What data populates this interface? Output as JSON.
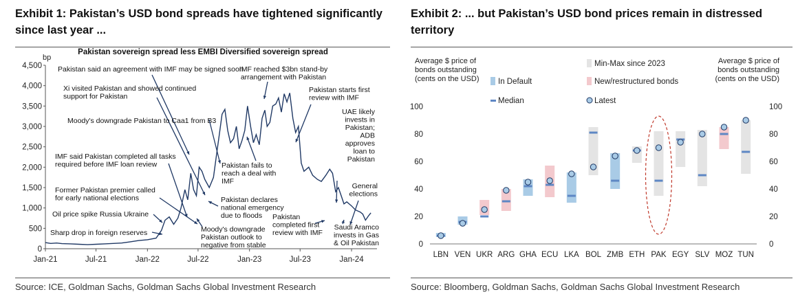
{
  "exhibit1": {
    "title": "Exhibit 1: Pakistan’s USD bond spreads have tightened significantly since last year ...",
    "source": "Source: ICE, Goldman Sachs, Goldman Sachs Global Investment Research",
    "chart_data": {
      "type": "line",
      "title": "Pakistan sovereign spread less EMBI Diversified sovereign spread",
      "ylabel": "bp",
      "ylim": [
        0,
        4500
      ],
      "yticks": [
        0,
        500,
        1000,
        1500,
        2000,
        2500,
        3000,
        3500,
        4000,
        4500
      ],
      "ytick_labels": [
        "0",
        "500",
        "1,000",
        "1,500",
        "2,000",
        "2,500",
        "3,000",
        "3,500",
        "4,000",
        "4,500"
      ],
      "xlim": [
        "2021-01",
        "2024-04"
      ],
      "xticks": [
        "2021-01",
        "2021-07",
        "2022-01",
        "2022-07",
        "2023-01",
        "2023-07",
        "2024-01"
      ],
      "xtick_labels": [
        "Jan-21",
        "Jul-21",
        "Jan-22",
        "Jul-22",
        "Jan-23",
        "Jul-23",
        "Jan-24"
      ],
      "series": [
        {
          "color": "#1f3864",
          "points": [
            [
              "2021-01-01",
              150
            ],
            [
              "2021-01-20",
              130
            ],
            [
              "2021-02-10",
              140
            ],
            [
              "2021-03-01",
              125
            ],
            [
              "2021-04-01",
              120
            ],
            [
              "2021-05-01",
              110
            ],
            [
              "2021-06-01",
              100
            ],
            [
              "2021-07-01",
              110
            ],
            [
              "2021-08-01",
              120
            ],
            [
              "2021-09-01",
              130
            ],
            [
              "2021-10-01",
              140
            ],
            [
              "2021-11-01",
              170
            ],
            [
              "2021-12-01",
              200
            ],
            [
              "2022-01-01",
              220
            ],
            [
              "2022-02-01",
              260
            ],
            [
              "2022-02-20",
              450
            ],
            [
              "2022-03-05",
              700
            ],
            [
              "2022-03-20",
              780
            ],
            [
              "2022-04-05",
              600
            ],
            [
              "2022-04-20",
              750
            ],
            [
              "2022-05-01",
              1000
            ],
            [
              "2022-05-15",
              1450
            ],
            [
              "2022-05-25",
              1200
            ],
            [
              "2022-06-05",
              1850
            ],
            [
              "2022-06-15",
              1450
            ],
            [
              "2022-06-25",
              1300
            ],
            [
              "2022-07-05",
              2000
            ],
            [
              "2022-07-15",
              1900
            ],
            [
              "2022-07-25",
              1700
            ],
            [
              "2022-08-10",
              1500
            ],
            [
              "2022-08-25",
              1750
            ],
            [
              "2022-09-05",
              2300
            ],
            [
              "2022-09-15",
              2800
            ],
            [
              "2022-09-25",
              3300
            ],
            [
              "2022-10-05",
              3420
            ],
            [
              "2022-10-15",
              2900
            ],
            [
              "2022-10-25",
              2600
            ],
            [
              "2022-11-05",
              2700
            ],
            [
              "2022-11-15",
              3000
            ],
            [
              "2022-11-25",
              2450
            ],
            [
              "2022-12-05",
              2650
            ],
            [
              "2022-12-15",
              2900
            ],
            [
              "2022-12-25",
              3500
            ],
            [
              "2023-01-05",
              3000
            ],
            [
              "2023-01-15",
              2600
            ],
            [
              "2023-01-25",
              2800
            ],
            [
              "2023-02-05",
              2550
            ],
            [
              "2023-02-15",
              3200
            ],
            [
              "2023-02-25",
              3400
            ],
            [
              "2023-03-05",
              3000
            ],
            [
              "2023-03-15",
              3100
            ],
            [
              "2023-03-25",
              3500
            ],
            [
              "2023-04-05",
              3550
            ],
            [
              "2023-04-15",
              3700
            ],
            [
              "2023-04-25",
              3350
            ],
            [
              "2023-05-05",
              3800
            ],
            [
              "2023-05-15",
              3600
            ],
            [
              "2023-05-25",
              3820
            ],
            [
              "2023-06-05",
              3200
            ],
            [
              "2023-06-15",
              2850
            ],
            [
              "2023-06-25",
              3000
            ],
            [
              "2023-07-05",
              2100
            ],
            [
              "2023-07-15",
              1900
            ],
            [
              "2023-08-01",
              2000
            ],
            [
              "2023-08-15",
              1800
            ],
            [
              "2023-09-01",
              1700
            ],
            [
              "2023-09-15",
              1650
            ],
            [
              "2023-10-01",
              1800
            ],
            [
              "2023-10-15",
              1950
            ],
            [
              "2023-10-25",
              1850
            ],
            [
              "2023-11-05",
              1400
            ],
            [
              "2023-11-15",
              1500
            ],
            [
              "2023-11-25",
              1300
            ],
            [
              "2023-12-05",
              1100
            ],
            [
              "2023-12-15",
              1150
            ],
            [
              "2024-01-01",
              1050
            ],
            [
              "2024-01-15",
              950
            ],
            [
              "2024-02-01",
              900
            ],
            [
              "2024-02-10",
              850
            ],
            [
              "2024-02-20",
              700
            ],
            [
              "2024-03-01",
              800
            ],
            [
              "2024-03-10",
              880
            ]
          ]
        }
      ],
      "annotations": [
        {
          "lines": [
            "Pakistan said an agreement with IMF may be signed soon"
          ]
        },
        {
          "lines": [
            "Xi visited Pakistan and showed continued",
            "support for Pakistan"
          ]
        },
        {
          "lines": [
            "Moody's downgrade Pakistan to Caa1 from B3"
          ]
        },
        {
          "lines": [
            "IMF said Pakistan completed all tasks",
            "required before IMF loan review"
          ]
        },
        {
          "lines": [
            "Former Pakistan premier called",
            "for early national elections"
          ]
        },
        {
          "lines": [
            "Oil price spike Russia Ukraine"
          ]
        },
        {
          "lines": [
            "Sharp drop in foreign reserves"
          ]
        },
        {
          "lines": [
            "Moody's downgrade",
            "Pakistan outlook to",
            "negative from stable"
          ]
        },
        {
          "lines": [
            "Pakistan declares",
            "national emergency",
            "due to floods"
          ]
        },
        {
          "lines": [
            "Pakistan fails to",
            "reach a deal with",
            "IMF"
          ]
        },
        {
          "lines": [
            "IMF reached $3bn stand-by",
            "arrangement with Pakistan"
          ]
        },
        {
          "lines": [
            "Pakistan starts first",
            "review with IMF"
          ]
        },
        {
          "lines": [
            "UAE likely",
            "invests in",
            "Pakistan;",
            "ADB",
            "approves",
            "loan to",
            "Pakistan"
          ]
        },
        {
          "lines": [
            "General",
            "elections"
          ]
        },
        {
          "lines": [
            "Pakistan",
            "completed first",
            "review with IMF"
          ]
        },
        {
          "lines": [
            "Saudi Aramco",
            "invests in Gas",
            "& Oil Pakistan"
          ]
        }
      ]
    }
  },
  "exhibit2": {
    "title": "Exhibit 2: ... but Pakistan’s USD bond prices remain in distressed territory",
    "source": "Source: Bloomberg, Goldman Sachs, Goldman Sachs Global Investment Research",
    "chart_data": {
      "type": "range",
      "ylabel_left": [
        "Average $ price of",
        "bonds outstanding",
        "(cents on the USD)"
      ],
      "ylabel_right": [
        "Average $ price of",
        "bonds outstanding",
        "(cents on the USD)"
      ],
      "ylim": [
        0,
        100
      ],
      "yticks": [
        0,
        20,
        40,
        60,
        80,
        100
      ],
      "legend": {
        "minmax": "Min-Max since 2023",
        "in_default": "In Default",
        "new_restructured": "New/restructured bonds",
        "median": "Median",
        "latest": "Latest"
      },
      "colors": {
        "minmax": "#e4e4e4",
        "in_default": "#a9cbe6",
        "new_restructured": "#f3c9cd",
        "median": "#5e87c4",
        "latest_fill": "#a9cbe6",
        "latest_stroke": "#1f3864",
        "highlight": "#c0392b"
      },
      "categories": [
        "LBN",
        "VEN",
        "UKR",
        "ARG",
        "GHA",
        "ECU",
        "LKA",
        "BOL",
        "ZMB",
        "ETH",
        "PAK",
        "EGY",
        "SLV",
        "MOZ",
        "TUN"
      ],
      "groups": [
        "default",
        "default",
        "restructured",
        "restructured",
        "default",
        "restructured",
        "default",
        "minmax",
        "default",
        "minmax",
        "minmax",
        "minmax",
        "minmax",
        "restructured",
        "minmax"
      ],
      "min": [
        5,
        14,
        21,
        24,
        35,
        34,
        30,
        50,
        40,
        59,
        35,
        56,
        42,
        69,
        51
      ],
      "max": [
        8,
        20,
        32,
        40,
        47,
        57,
        52,
        85,
        66,
        71,
        82,
        82,
        83,
        85,
        90
      ],
      "median": [
        6,
        16,
        20,
        31,
        42,
        43,
        35,
        81,
        46,
        68,
        46,
        76,
        50,
        80,
        67
      ],
      "latest": [
        6,
        15,
        25,
        39,
        45,
        46,
        51,
        56,
        64,
        68,
        70,
        74,
        80,
        85,
        90
      ],
      "highlight": "PAK"
    }
  }
}
